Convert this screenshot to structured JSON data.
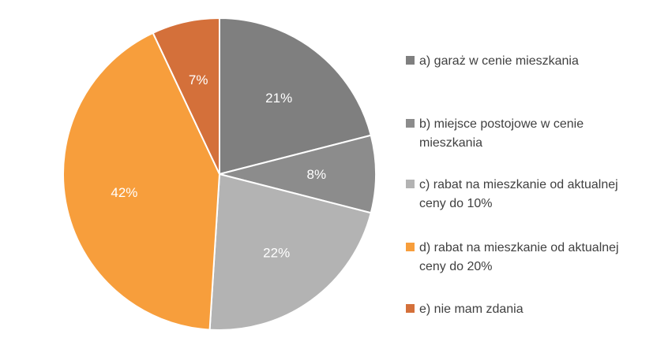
{
  "chart_data": {
    "type": "pie",
    "title": "",
    "legend_position": "right",
    "slices": [
      {
        "label": "a)  garaż w cenie mieszkania",
        "value": 21,
        "display": "21%",
        "color": "#7f7f7f"
      },
      {
        "label": "b) miejsce postojowe w cenie mieszkania",
        "value": 8,
        "display": "8%",
        "color": "#8c8c8c"
      },
      {
        "label": "c) rabat na mieszkanie od aktualnej ceny do 10%",
        "value": 22,
        "display": "22%",
        "color": "#b3b3b3"
      },
      {
        "label": "d) rabat na mieszkanie od aktualnej ceny do 20%",
        "value": 42,
        "display": "42%",
        "color": "#f79e3c"
      },
      {
        "label": "e) nie mam zdania",
        "value": 7,
        "display": "7%",
        "color": "#d4703a"
      }
    ]
  }
}
